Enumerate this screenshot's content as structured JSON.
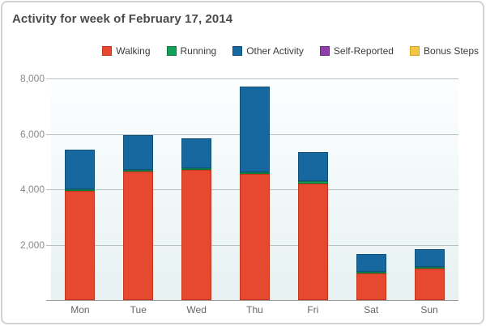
{
  "panel": {
    "title": "Activity for week of February 17, 2014"
  },
  "colors": {
    "walking": "#e6492f",
    "walking_border": "#c0361e",
    "running": "#16a05c",
    "running_border": "#0d7a44",
    "other": "#17689e",
    "other_border": "#0f507c",
    "self_reported": "#8e3fa9",
    "self_reported_border": "#6c2d86",
    "bonus": "#f5c445",
    "bonus_border": "#d8a41f"
  },
  "chart_data": {
    "type": "bar",
    "stacked": true,
    "title": "Activity for week of February 17, 2014",
    "categories": [
      "Mon",
      "Tue",
      "Wed",
      "Thu",
      "Fri",
      "Sat",
      "Sun"
    ],
    "series": [
      {
        "name": "Walking",
        "color_key": "walking",
        "values": [
          3950,
          4650,
          4700,
          4550,
          4200,
          960,
          1130
        ]
      },
      {
        "name": "Running",
        "color_key": "running",
        "values": [
          50,
          50,
          50,
          70,
          100,
          60,
          60
        ]
      },
      {
        "name": "Other Activity",
        "color_key": "other",
        "values": [
          1430,
          1250,
          1080,
          3080,
          1050,
          650,
          640
        ]
      },
      {
        "name": "Self-Reported",
        "color_key": "self_reported",
        "values": [
          0,
          0,
          0,
          0,
          0,
          0,
          0
        ]
      },
      {
        "name": "Bonus Steps",
        "color_key": "bonus",
        "values": [
          0,
          0,
          0,
          0,
          0,
          0,
          0
        ]
      }
    ],
    "totals": [
      5430,
      5950,
      5830,
      7700,
      5350,
      1670,
      1830
    ],
    "xlabel": "",
    "ylabel": "",
    "ylim": [
      0,
      8000
    ],
    "y_ticks": [
      {
        "value": 2000,
        "label": "2,000"
      },
      {
        "value": 4000,
        "label": "4,000"
      },
      {
        "value": 6000,
        "label": "6,000"
      },
      {
        "value": 8000,
        "label": "8,000"
      }
    ],
    "grid": true,
    "legend_position": "top-right"
  }
}
